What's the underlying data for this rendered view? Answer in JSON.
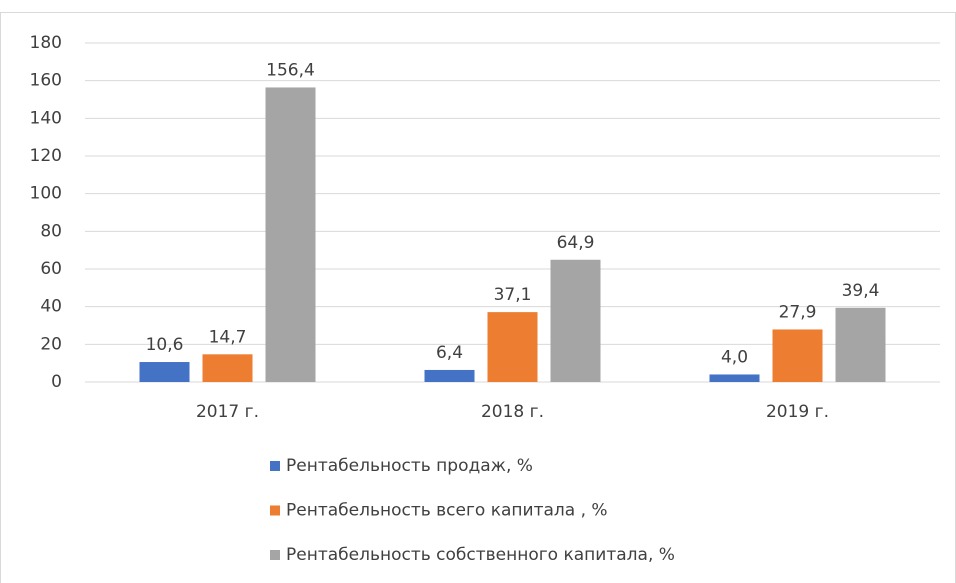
{
  "chart_data": {
    "type": "bar",
    "categories": [
      "2017 г.",
      "2018 г.",
      "2019 г."
    ],
    "series": [
      {
        "name": "Рентабельность продаж, %",
        "color": "#4472c4",
        "values": [
          10.6,
          6.4,
          4.0
        ],
        "value_labels": [
          "10,6",
          "6,4",
          "4,0"
        ]
      },
      {
        "name": "Рентабельность всего капитала , %",
        "color": "#ed7d31",
        "values": [
          14.7,
          37.1,
          27.9
        ],
        "value_labels": [
          "14,7",
          "37,1",
          "27,9"
        ]
      },
      {
        "name": "Рентабельность собственного капитала, %",
        "color": "#a5a5a5",
        "values": [
          156.4,
          64.9,
          39.4
        ],
        "value_labels": [
          "156,4",
          "64,9",
          "39,4"
        ]
      }
    ],
    "ylim": [
      0,
      180
    ],
    "yticks": [
      0,
      20,
      40,
      60,
      80,
      100,
      120,
      140,
      160,
      180
    ],
    "grid": true,
    "legend": "bottom"
  }
}
